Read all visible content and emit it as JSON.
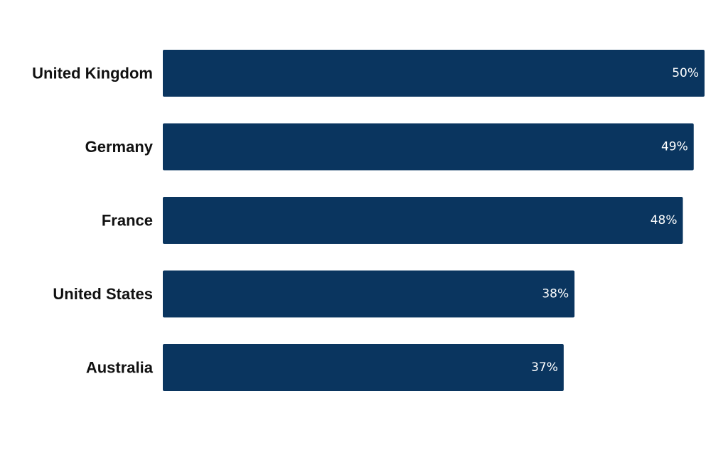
{
  "chart_data": {
    "type": "bar",
    "orientation": "horizontal",
    "categories": [
      "United Kingdom",
      "Germany",
      "France",
      "United States",
      "Australia"
    ],
    "values": [
      50,
      49,
      48,
      38,
      37
    ],
    "value_labels": [
      "50%",
      "49%",
      "48%",
      "38%",
      "37%"
    ],
    "unit": "%",
    "xlim": [
      0,
      50
    ],
    "grid": false,
    "legend": "none",
    "colors": {
      "bar": "#0a355f",
      "category_text": "#111111",
      "value_text": "#ffffff",
      "background": "#ffffff"
    }
  }
}
